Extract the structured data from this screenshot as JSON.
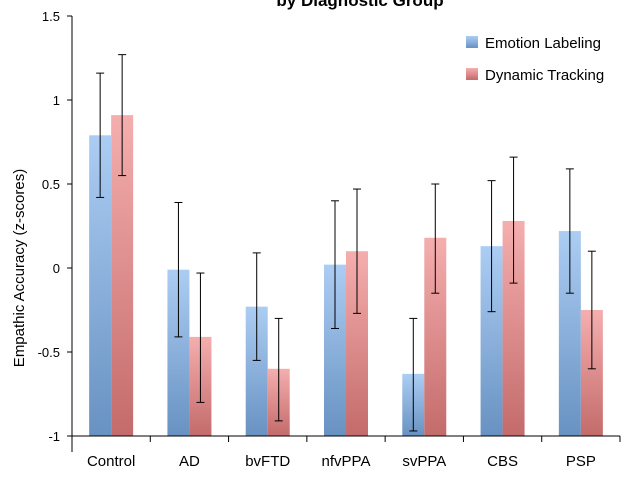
{
  "chart_data": {
    "type": "bar",
    "title": "by Diagnostic Group",
    "ylabel": "Empathic Accuracy (z-scores)",
    "xlabel": "",
    "ylim": [
      -1,
      1.5
    ],
    "yticks": [
      1.5,
      1,
      0.5,
      0,
      -0.5,
      -1
    ],
    "ytick_labels": [
      "1.5",
      "1",
      "0.5",
      "0",
      "-0.5",
      "-1"
    ],
    "categories": [
      "Control",
      "AD",
      "bvFTD",
      "nfvPPA",
      "svPPA",
      "CBS",
      "PSP"
    ],
    "legend_position": "top-right",
    "grid": false,
    "series": [
      {
        "name": "Emotion Labeling",
        "color": "#7fb2ec",
        "values": [
          0.79,
          -0.01,
          -0.23,
          0.02,
          -0.63,
          0.13,
          0.22
        ],
        "error_low": [
          0.42,
          -0.41,
          -0.55,
          -0.36,
          -0.97,
          -0.26,
          -0.15
        ],
        "error_high": [
          1.16,
          0.39,
          0.09,
          0.4,
          -0.3,
          0.52,
          0.59
        ]
      },
      {
        "name": "Dynamic Tracking",
        "color": "#ef8283",
        "values": [
          0.91,
          -0.41,
          -0.6,
          0.1,
          0.18,
          0.28,
          -0.25
        ],
        "error_low": [
          0.55,
          -0.8,
          -0.91,
          -0.27,
          -0.15,
          -0.09,
          -0.6
        ],
        "error_high": [
          1.27,
          -0.03,
          -0.3,
          0.47,
          0.5,
          0.66,
          0.1
        ]
      }
    ]
  }
}
